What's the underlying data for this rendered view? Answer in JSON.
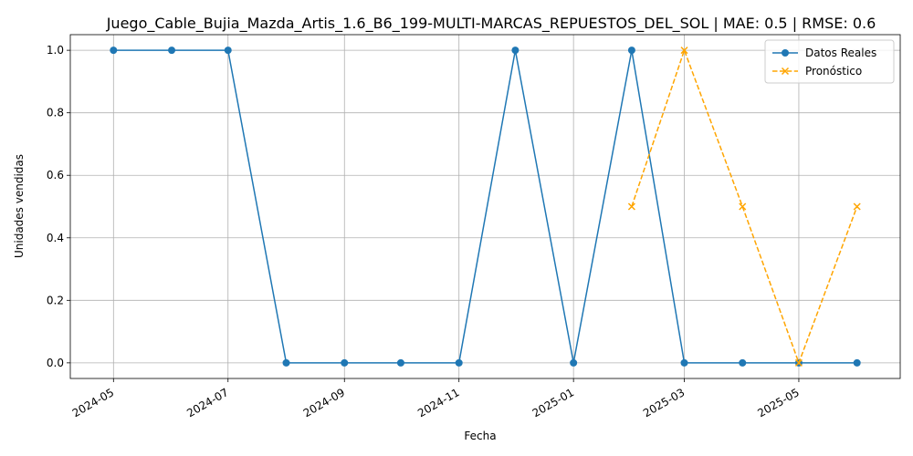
{
  "chart_data": {
    "type": "line",
    "title": "Juego_Cable_Bujia_Mazda_Artis_1.6_B6_199-MULTI-MARCAS_REPUESTOS_DEL_SOL | MAE: 0.5 | RMSE: 0.6",
    "xlabel": "Fecha",
    "ylabel": "Unidades vendidas",
    "xlim": [
      "2024-04-08",
      "2025-06-24"
    ],
    "ylim": [
      -0.05,
      1.05
    ],
    "x_ticks": [
      "2024-05",
      "2024-07",
      "2024-09",
      "2024-11",
      "2025-01",
      "2025-03",
      "2025-05"
    ],
    "y_ticks": [
      "0.0",
      "0.2",
      "0.4",
      "0.6",
      "0.8",
      "1.0"
    ],
    "y_tick_values": [
      0,
      0.2,
      0.4,
      0.6,
      0.8,
      1.0
    ],
    "grid": true,
    "legend_position": "top-right",
    "series": [
      {
        "name": "Datos Reales",
        "color": "#1f77b4",
        "marker": "circle",
        "line_style": "solid",
        "x": [
          "2024-05-01",
          "2024-06-01",
          "2024-07-01",
          "2024-08-01",
          "2024-09-01",
          "2024-10-01",
          "2024-11-01",
          "2024-12-01",
          "2025-01-01",
          "2025-02-01",
          "2025-03-01",
          "2025-04-01",
          "2025-05-01",
          "2025-06-01"
        ],
        "y": [
          1,
          1,
          1,
          0,
          0,
          0,
          0,
          1,
          0,
          1,
          0,
          0,
          0,
          0
        ]
      },
      {
        "name": "Pronóstico",
        "color": "#ffa500",
        "marker": "x",
        "line_style": "dashed",
        "x": [
          "2025-02-01",
          "2025-03-01",
          "2025-04-01",
          "2025-05-01",
          "2025-06-01"
        ],
        "y": [
          0.5,
          1.0,
          0.5,
          0.0,
          0.5
        ]
      }
    ]
  }
}
